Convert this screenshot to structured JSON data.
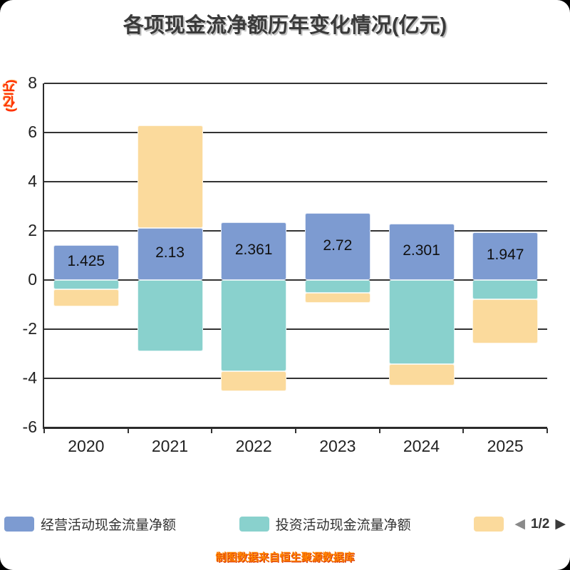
{
  "title": "各项现金流净额历年变化情况(亿元)",
  "y_axis_label": "(亿元)",
  "footer": "制图数据来自恒生聚源数据库",
  "pagination": {
    "prev_icon": "◀",
    "label": "1/2",
    "next_icon": "▶"
  },
  "legend": [
    {
      "label": "经营活动现金流量净额",
      "color": "#7D9BD1"
    },
    {
      "label": "投资活动现金流量净额",
      "color": "#89D1CD"
    },
    {
      "label": "",
      "color": "#FBDA9C"
    }
  ],
  "chart_data": {
    "type": "bar",
    "stacked": true,
    "title": "各项现金流净额历年变化情况(亿元)",
    "categories": [
      "2020",
      "2021",
      "2022",
      "2023",
      "2024",
      "2025"
    ],
    "series": [
      {
        "name": "经营活动现金流量净额",
        "color": "#7D9BD1",
        "values": [
          1.425,
          2.13,
          2.361,
          2.72,
          2.301,
          1.947
        ],
        "labels": [
          "1.425",
          "2.13",
          "2.361",
          "2.72",
          "2.301",
          "1.947"
        ]
      },
      {
        "name": "投资活动现金流量净额",
        "color": "#89D1CD",
        "values": [
          -0.38,
          -2.9,
          -3.7,
          -0.52,
          -3.42,
          -0.78
        ]
      },
      {
        "name": "",
        "color": "#FBDA9C",
        "values": [
          -0.68,
          4.15,
          -0.82,
          -0.42,
          -0.88,
          -1.8
        ]
      }
    ],
    "ylim": [
      -6,
      8
    ],
    "yticks": [
      8,
      6,
      4,
      2,
      0,
      -2,
      -4,
      -6
    ],
    "grid": true,
    "legend_position": "bottom"
  }
}
